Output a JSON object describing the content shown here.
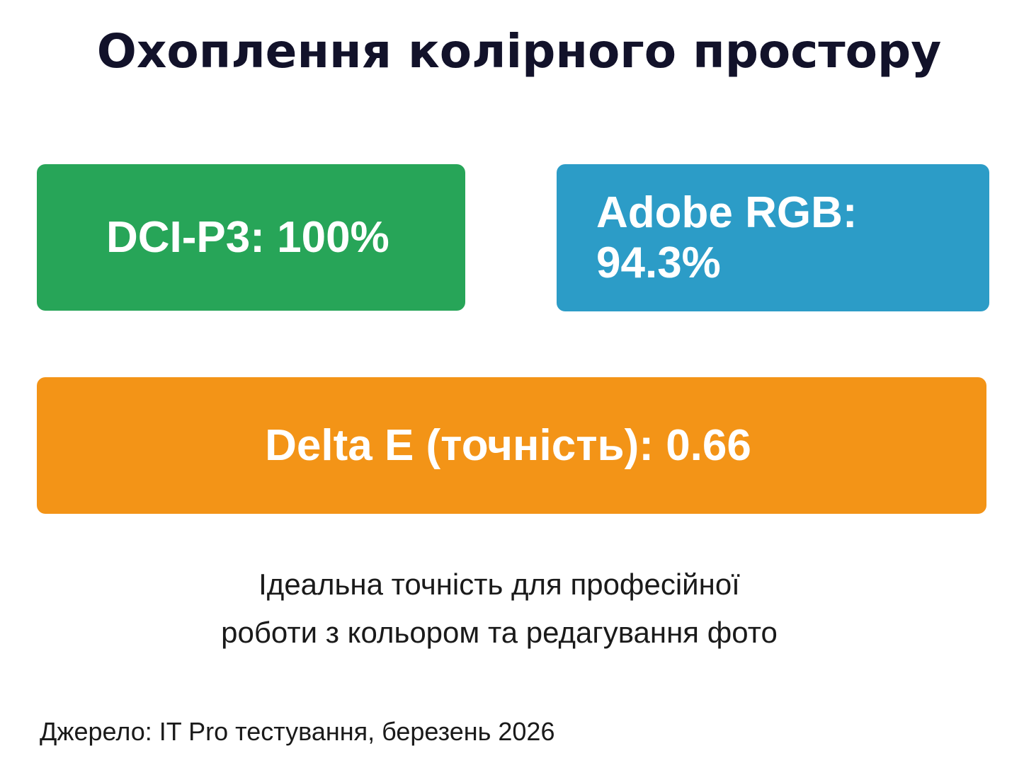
{
  "title": "Охоплення колірного простору",
  "metrics": {
    "dci_p3": {
      "label": "DCI-P3: 100%",
      "color": "#27a558"
    },
    "adobe_rgb": {
      "label": "Adobe RGB: 94.3%",
      "color": "#2c9cc7"
    },
    "delta_e": {
      "label": "Delta E (точність): 0.66",
      "color": "#f39417"
    }
  },
  "description": {
    "line1": "Ідеальна точність для професійної",
    "line2": "роботи з кольором та редагування фото"
  },
  "source": "Джерело: IT Pro тестування, березень 2026"
}
